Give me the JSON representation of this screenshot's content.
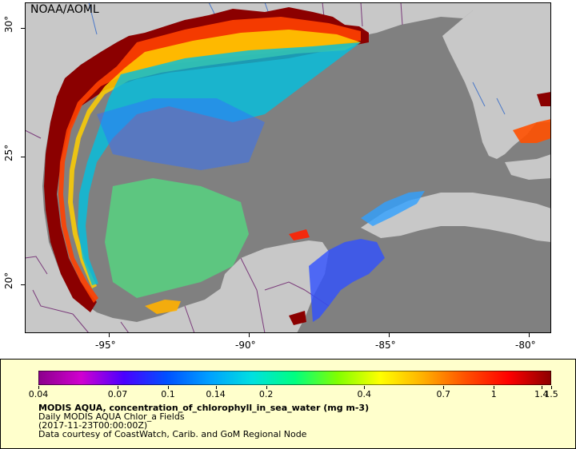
{
  "map": {
    "credit": "NOAA/AOML",
    "x_ticks": [
      {
        "label": "-95°",
        "lon": -95
      },
      {
        "label": "-90°",
        "lon": -90
      },
      {
        "label": "-85°",
        "lon": -85
      },
      {
        "label": "-80°",
        "lon": -80
      }
    ],
    "y_ticks": [
      {
        "label": "30°",
        "lat": 30
      },
      {
        "label": "25°",
        "lat": 25
      },
      {
        "label": "20°",
        "lat": 20
      }
    ],
    "colors": {
      "land": "#c8c8c8",
      "no_data": "#808080",
      "borders": "#7a3a7a",
      "rivers": "#4a78c8"
    }
  },
  "legend": {
    "title": "MODIS AQUA, concentration_of_chlorophyll_in_sea_water (mg m-3)",
    "subtitle": "Daily MODIS AQUA Chlor_a Fields",
    "time": "(2017-11-23T00:00:00Z)",
    "courtesy": "Data courtesy of CoastWatch, Carib. and GoM Regional Node",
    "scale": "log",
    "ticks": [
      "0.04",
      "0.07",
      "0.1",
      "0.14",
      "0.2",
      "0.4",
      "0.7",
      "1",
      "1.4",
      "1.5"
    ],
    "tick_values": [
      0.04,
      0.07,
      0.1,
      0.14,
      0.2,
      0.4,
      0.7,
      1,
      1.4,
      1.5
    ],
    "palette": [
      "#8b008b",
      "#d000d0",
      "#4b00ff",
      "#0050ff",
      "#00a0ff",
      "#00e0e0",
      "#00ff80",
      "#80ff00",
      "#ffff00",
      "#ffb000",
      "#ff5000",
      "#ff0000",
      "#8b0000"
    ],
    "background": "#ffffcc"
  }
}
